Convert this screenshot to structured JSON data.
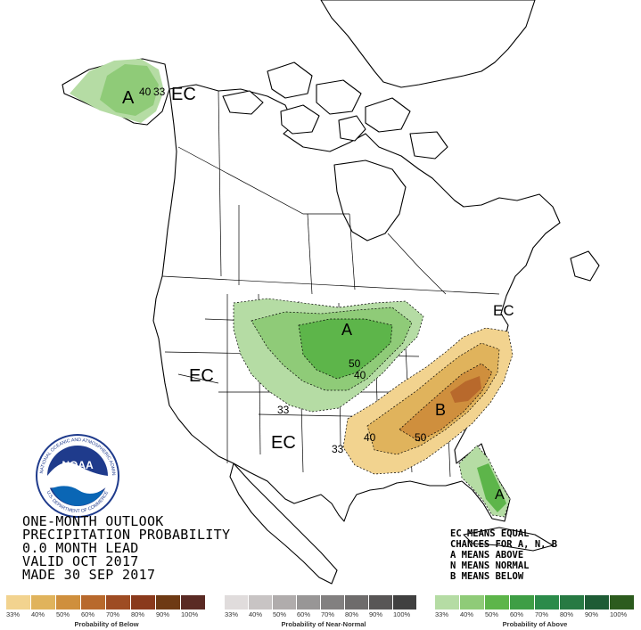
{
  "title_block": {
    "line1": "ONE-MONTH OUTLOOK",
    "line2": "PRECIPITATION PROBABILITY",
    "line3": "0.0 MONTH LEAD",
    "line4": "VALID OCT 2017",
    "line5": "MADE 30 SEP 2017"
  },
  "legend_text": {
    "line1": "EC MEANS EQUAL",
    "line2": "CHANCES FOR A, N, B",
    "line3": "A MEANS ABOVE",
    "line4": "N MEANS NORMAL",
    "line5": "B MEANS BELOW"
  },
  "map_labels": {
    "alaska_category": "A",
    "alaska_contour": "40",
    "alaska_contour2": "33",
    "alaska_ec": "EC",
    "west_ec": "EC",
    "southwest_ec": "EC",
    "northeast_ec": "EC",
    "plains_category": "A",
    "plains_contour_50": "50",
    "plains_contour_40": "40",
    "plains_contour_33": "33",
    "southeast_category": "B",
    "southeast_contour_40": "40",
    "southeast_contour_50": "50",
    "southeast_contour_33": "33",
    "florida_category": "A"
  },
  "scales": {
    "below": {
      "caption": "Probability of Below",
      "ticks": [
        "33%",
        "40%",
        "50%",
        "60%",
        "70%",
        "80%",
        "90%",
        "100%"
      ],
      "colors": [
        "#f2d38f",
        "#e0b35c",
        "#cf8f3d",
        "#b8692c",
        "#9e4c23",
        "#8a3a1c",
        "#6e3a14",
        "#5a2a24"
      ]
    },
    "near_normal": {
      "caption": "Probability of Near-Normal",
      "ticks": [
        "33%",
        "40%",
        "50%",
        "60%",
        "70%",
        "80%",
        "90%",
        "100%"
      ],
      "colors": [
        "#e0dcdc",
        "#c8c4c4",
        "#b0acac",
        "#989696",
        "#828080",
        "#6e6c6c",
        "#585656",
        "#404040"
      ]
    },
    "above": {
      "caption": "Probability of Above",
      "ticks": [
        "33%",
        "40%",
        "50%",
        "60%",
        "70%",
        "80%",
        "90%",
        "100%"
      ],
      "colors": [
        "#b5dca4",
        "#8fcb78",
        "#5db54a",
        "#3e9e45",
        "#2b8b4a",
        "#277a43",
        "#1e5c35",
        "#2c5b1e"
      ]
    }
  },
  "colors": {
    "above_33": "#b5dca4",
    "above_40": "#8fcb78",
    "above_50": "#5db54a",
    "below_33": "#f2d38f",
    "below_40": "#e0b35c",
    "below_50": "#cf8f3d",
    "below_60": "#b8692c"
  },
  "logo": {
    "name": "noaa-logo",
    "text": "NOAA",
    "ring_text": "NATIONAL OCEANIC AND ATMOSPHERIC ADMINISTRATION",
    "bottom_text": "U.S. DEPARTMENT OF COMMERCE"
  }
}
